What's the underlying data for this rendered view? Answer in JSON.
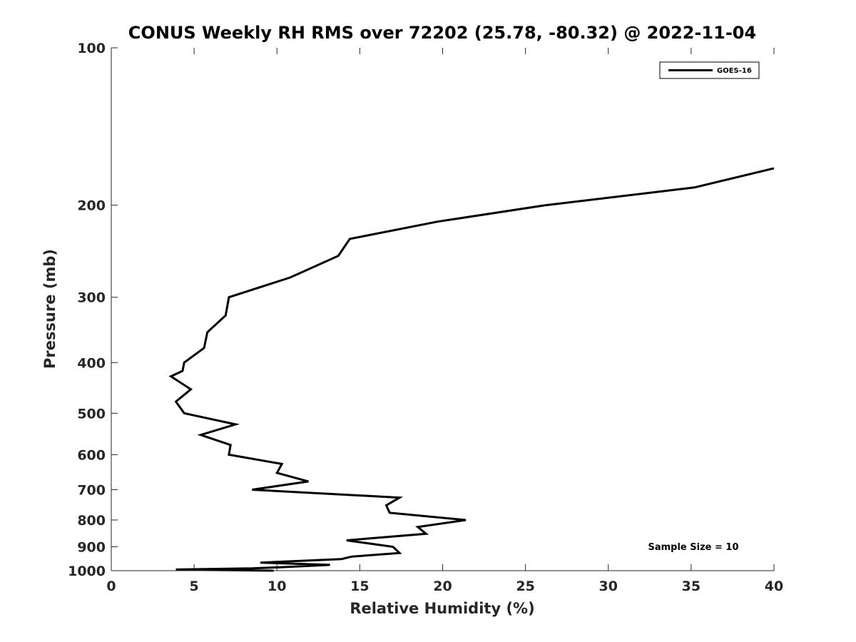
{
  "chart_data": {
    "type": "line",
    "title": "CONUS Weekly RH RMS over 72202 (25.78, -80.32) @ 2022-11-04",
    "xlabel": "Relative Humidity (%)",
    "ylabel": "Pressure (mb)",
    "xlim": [
      0,
      40
    ],
    "ylim": [
      100,
      1000
    ],
    "yscale": "log",
    "yreversed": true,
    "grid": false,
    "legend_position": "top-right",
    "x_ticks": [
      0,
      5,
      10,
      15,
      20,
      25,
      30,
      35,
      40
    ],
    "x_tick_labels": [
      "0",
      "5",
      "10",
      "15",
      "20",
      "25",
      "30",
      "35",
      "40"
    ],
    "y_ticks": [
      100,
      200,
      300,
      400,
      500,
      600,
      700,
      800,
      900,
      1000
    ],
    "y_tick_labels": [
      "100",
      "200",
      "300",
      "400",
      "500",
      "600",
      "700",
      "800",
      "900",
      "1000"
    ],
    "series": [
      {
        "name": "GOES-16",
        "color": "#000000",
        "points": [
          [
            40.0,
            170
          ],
          [
            35.2,
            185
          ],
          [
            26.2,
            200
          ],
          [
            19.7,
            215
          ],
          [
            14.4,
            232
          ],
          [
            13.7,
            250
          ],
          [
            10.8,
            275
          ],
          [
            7.1,
            300
          ],
          [
            6.9,
            325
          ],
          [
            5.8,
            350
          ],
          [
            5.6,
            375
          ],
          [
            4.4,
            400
          ],
          [
            4.3,
            415
          ],
          [
            3.6,
            425
          ],
          [
            4.8,
            450
          ],
          [
            3.9,
            475
          ],
          [
            4.4,
            500
          ],
          [
            7.5,
            525
          ],
          [
            5.4,
            550
          ],
          [
            7.2,
            575
          ],
          [
            7.1,
            600
          ],
          [
            10.3,
            625
          ],
          [
            10.0,
            650
          ],
          [
            11.9,
            675
          ],
          [
            8.5,
            700
          ],
          [
            17.4,
            725
          ],
          [
            16.6,
            750
          ],
          [
            16.8,
            775
          ],
          [
            21.4,
            800
          ],
          [
            18.5,
            825
          ],
          [
            19.0,
            850
          ],
          [
            14.2,
            875
          ],
          [
            17.0,
            900
          ],
          [
            17.4,
            925
          ],
          [
            14.5,
            940
          ],
          [
            13.9,
            950
          ],
          [
            9.0,
            965
          ],
          [
            13.2,
            975
          ],
          [
            10.2,
            985
          ],
          [
            8.5,
            990
          ],
          [
            3.9,
            995
          ],
          [
            5.5,
            997
          ],
          [
            9.8,
            1000
          ]
        ]
      }
    ],
    "annotations": [
      "Sample Size = 10"
    ]
  }
}
